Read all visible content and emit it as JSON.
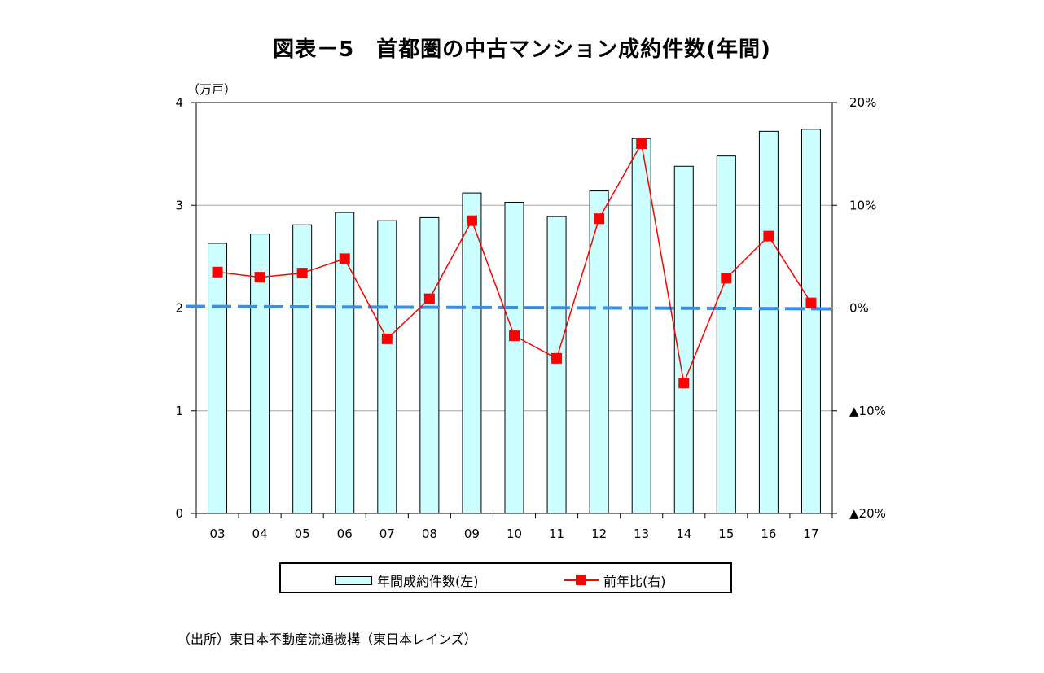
{
  "title": "図表－5　首都圏の中古マンション成約件数(年間)",
  "source": "（出所）東日本不動産流通機構（東日本レインズ）",
  "chart_data": {
    "type": "bar",
    "categories": [
      "03",
      "04",
      "05",
      "06",
      "07",
      "08",
      "09",
      "10",
      "11",
      "12",
      "13",
      "14",
      "15",
      "16",
      "17"
    ],
    "series": [
      {
        "name": "年間成約件数(左)",
        "type": "bar",
        "axis": "left",
        "color": "#ccffff",
        "values": [
          2.63,
          2.72,
          2.81,
          2.93,
          2.85,
          2.88,
          3.12,
          3.03,
          2.89,
          3.14,
          3.65,
          3.38,
          3.48,
          3.72,
          3.74
        ]
      },
      {
        "name": "前年比(右)",
        "type": "line",
        "axis": "right",
        "color": "#ff0000",
        "values": [
          3.5,
          3.0,
          3.4,
          4.8,
          -3.0,
          0.9,
          8.5,
          -2.7,
          -4.9,
          8.7,
          16.0,
          -7.3,
          2.9,
          7.0,
          0.5
        ]
      }
    ],
    "y_left": {
      "unit": "（万戸）",
      "ticks": [
        "4",
        "3",
        "2",
        "1",
        "0"
      ],
      "ylim": [
        0,
        4
      ]
    },
    "y_right": {
      "ticks": [
        "20%",
        "10%",
        "0%",
        "▲10%",
        "▲20%"
      ],
      "ylim": [
        -20,
        20
      ]
    },
    "zero_line": {
      "color": "#3a8ee6",
      "style": "dashed"
    },
    "grid": true,
    "legend": "bottom"
  }
}
